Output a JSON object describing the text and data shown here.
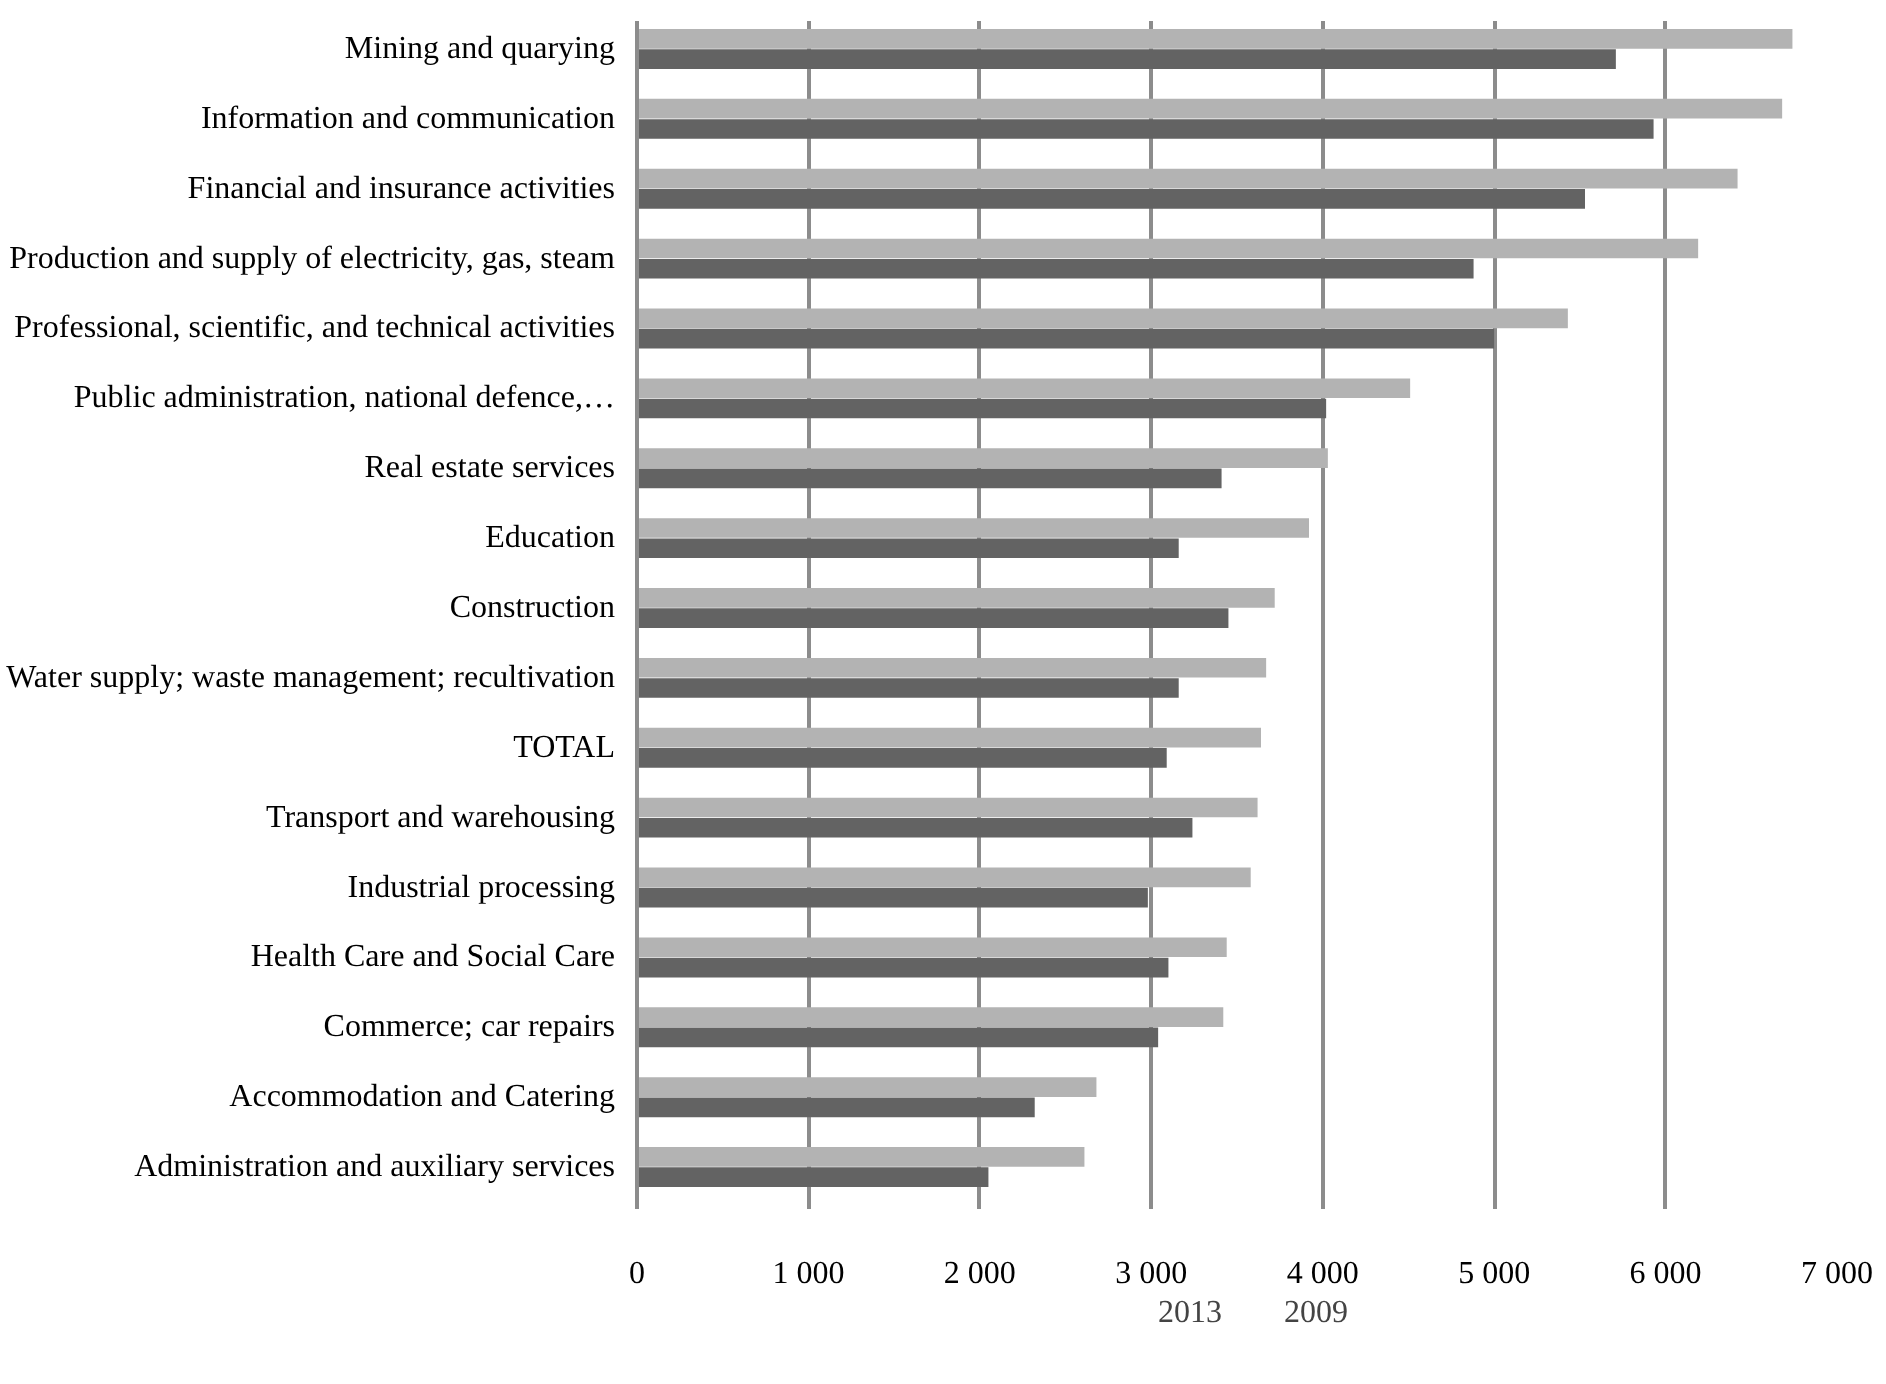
{
  "chart_data": {
    "type": "bar",
    "orientation": "horizontal",
    "categories": [
      "Mining and quarying",
      "Information and communication",
      "Financial and insurance activities",
      "Production and supply of electricity, gas, steam",
      "Professional, scientific, and technical activities",
      "Public administration, national defence,…",
      "Real estate services",
      "Education",
      "Construction",
      "Water supply; waste management; recultivation",
      "TOTAL",
      "Transport and warehousing",
      "Industrial processing",
      "Health Care and Social Care",
      "Commerce; car repairs",
      "Accommodation and Catering",
      "Administration and auxiliary services"
    ],
    "series": [
      {
        "name": "2013",
        "color": "#b3b3b3",
        "values": [
          6740,
          6680,
          6420,
          6190,
          5430,
          4510,
          4030,
          3920,
          3720,
          3670,
          3640,
          3620,
          3580,
          3440,
          3420,
          2680,
          2610
        ]
      },
      {
        "name": "2009",
        "color": "#636363",
        "values": [
          5710,
          5930,
          5530,
          4880,
          5000,
          4020,
          3410,
          3160,
          3450,
          3160,
          3090,
          3240,
          2980,
          3100,
          3040,
          2320,
          2050
        ]
      }
    ],
    "xlim": [
      0,
      7000
    ],
    "xticks": [
      0,
      {
        "value": 1000,
        "label": "1 000"
      },
      {
        "value": 2000,
        "label": "2 000"
      },
      {
        "value": 3000,
        "label": "3 000"
      },
      {
        "value": 4000,
        "label": "4 000"
      },
      {
        "value": 5000,
        "label": "5 000"
      },
      {
        "value": 6000,
        "label": "6 000"
      },
      {
        "value": 7000,
        "label": "7 000"
      }
    ],
    "grid": "x",
    "legend": "bottom"
  }
}
